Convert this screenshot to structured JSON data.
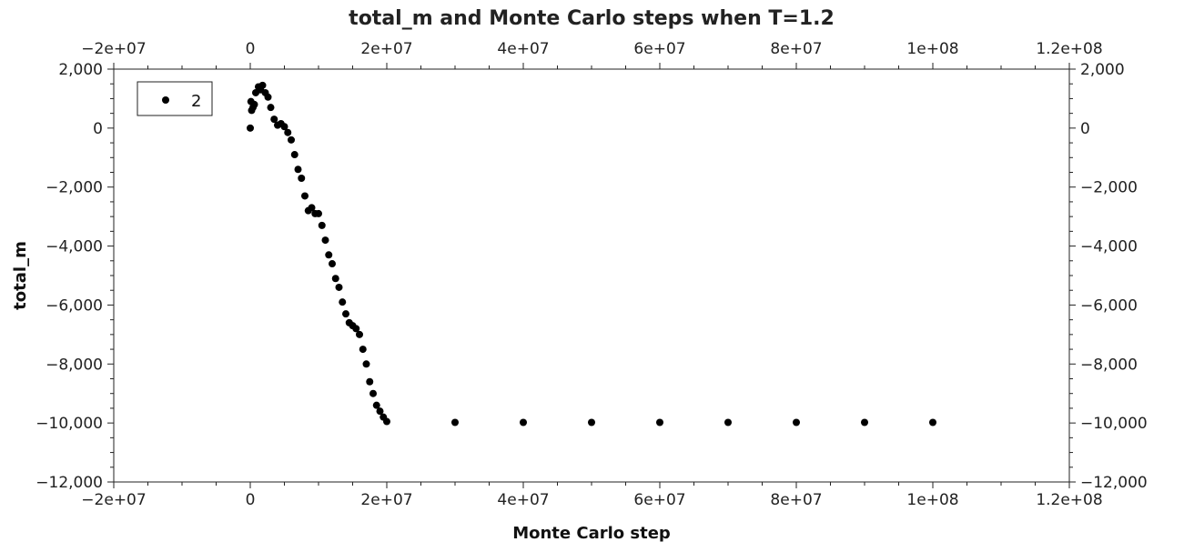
{
  "chart_data": {
    "type": "scatter",
    "title": "total_m and Monte Carlo steps when T=1.2",
    "xlabel": "Monte Carlo step",
    "ylabel": "total_m",
    "xlim": [
      -20000000,
      120000000
    ],
    "ylim": [
      -12000,
      2000
    ],
    "x_ticks": [
      -20000000,
      0,
      20000000,
      40000000,
      60000000,
      80000000,
      100000000,
      120000000
    ],
    "x_tick_labels": [
      "−2e+07",
      "0",
      "2e+07",
      "4e+07",
      "6e+07",
      "8e+07",
      "1e+08",
      "1.2e+08"
    ],
    "y_ticks": [
      2000,
      0,
      -2000,
      -4000,
      -6000,
      -8000,
      -10000,
      -12000
    ],
    "y_tick_labels": [
      "2,000",
      "0",
      "−2,000",
      "−4,000",
      "−6,000",
      "−8,000",
      "−10,000",
      "−12,000"
    ],
    "grid": false,
    "legend_position": "top-left",
    "series": [
      {
        "name": "2",
        "color": "#000000",
        "marker": "circle",
        "points": [
          [
            0,
            0
          ],
          [
            100000,
            900
          ],
          [
            200000,
            600
          ],
          [
            400000,
            700
          ],
          [
            600000,
            800
          ],
          [
            800000,
            1200
          ],
          [
            1200000,
            1400
          ],
          [
            1500000,
            1300
          ],
          [
            1800000,
            1450
          ],
          [
            2200000,
            1200
          ],
          [
            2600000,
            1050
          ],
          [
            3000000,
            700
          ],
          [
            3500000,
            300
          ],
          [
            4000000,
            100
          ],
          [
            4500000,
            150
          ],
          [
            5000000,
            50
          ],
          [
            5500000,
            -150
          ],
          [
            6000000,
            -400
          ],
          [
            6500000,
            -900
          ],
          [
            7000000,
            -1400
          ],
          [
            7500000,
            -1700
          ],
          [
            8000000,
            -2300
          ],
          [
            8500000,
            -2800
          ],
          [
            9000000,
            -2700
          ],
          [
            9500000,
            -2900
          ],
          [
            10000000,
            -2900
          ],
          [
            10500000,
            -3300
          ],
          [
            11000000,
            -3800
          ],
          [
            11500000,
            -4300
          ],
          [
            12000000,
            -4600
          ],
          [
            12500000,
            -5100
          ],
          [
            13000000,
            -5400
          ],
          [
            13500000,
            -5900
          ],
          [
            14000000,
            -6300
          ],
          [
            14500000,
            -6600
          ],
          [
            15000000,
            -6700
          ],
          [
            15500000,
            -6800
          ],
          [
            16000000,
            -7000
          ],
          [
            16500000,
            -7500
          ],
          [
            17000000,
            -8000
          ],
          [
            17500000,
            -8600
          ],
          [
            18000000,
            -9000
          ],
          [
            18500000,
            -9400
          ],
          [
            19000000,
            -9600
          ],
          [
            19500000,
            -9800
          ],
          [
            20000000,
            -9950
          ],
          [
            30000000,
            -9980
          ],
          [
            40000000,
            -9980
          ],
          [
            50000000,
            -9980
          ],
          [
            60000000,
            -9980
          ],
          [
            70000000,
            -9980
          ],
          [
            80000000,
            -9980
          ],
          [
            90000000,
            -9980
          ],
          [
            100000000,
            -9980
          ]
        ]
      }
    ]
  }
}
